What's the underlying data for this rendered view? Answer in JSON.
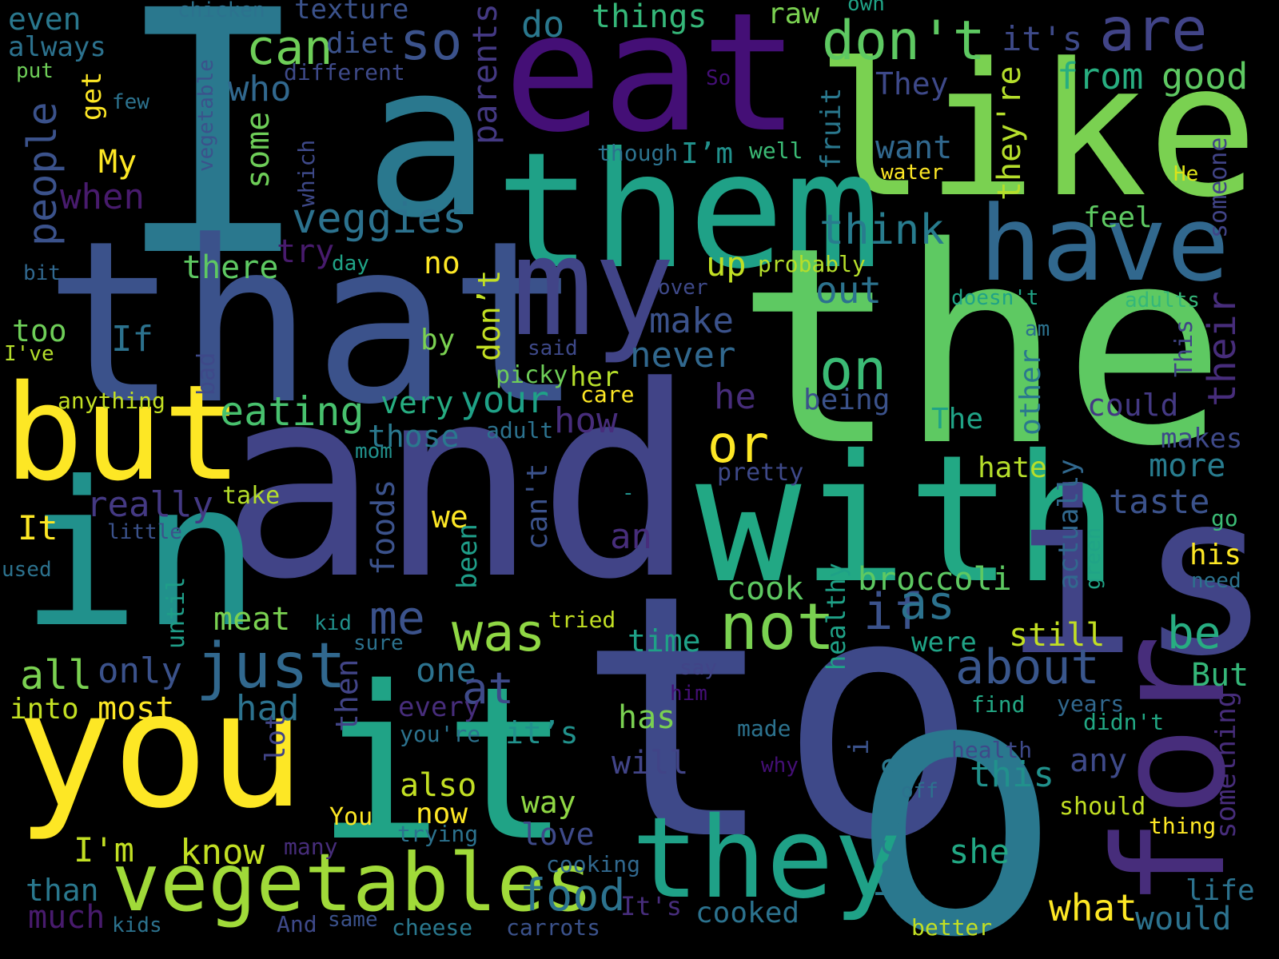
{
  "words": [
    {
      "text": "I",
      "color": "#2a788e"
    },
    {
      "text": "a",
      "color": "#2a788e"
    },
    {
      "text": "eat",
      "color": "#440f76"
    },
    {
      "text": "like",
      "color": "#7ad151"
    },
    {
      "text": "them",
      "color": "#1fa187"
    },
    {
      "text": "that",
      "color": "#3b528b"
    },
    {
      "text": "the",
      "color": "#5ec962"
    },
    {
      "text": "and",
      "color": "#414487"
    },
    {
      "text": "with",
      "color": "#22a884"
    },
    {
      "text": "is",
      "color": "#414487"
    },
    {
      "text": "in",
      "color": "#21918c"
    },
    {
      "text": "but",
      "color": "#fde725"
    },
    {
      "text": "my",
      "color": "#414487"
    },
    {
      "text": "have",
      "color": "#31688e"
    },
    {
      "text": "to",
      "color": "#3e4989"
    },
    {
      "text": "you",
      "color": "#fde725"
    },
    {
      "text": "it",
      "color": "#20a386"
    },
    {
      "text": "for",
      "color": "#472d7b"
    },
    {
      "text": "o",
      "color": "#2a788e"
    },
    {
      "text": "they",
      "color": "#1fa187"
    },
    {
      "text": "vegetables",
      "color": "#a0da39"
    },
    {
      "text": "veggies",
      "color": "#2c728e"
    },
    {
      "text": "don't",
      "color": "#5ec962"
    },
    {
      "text": "are",
      "color": "#414487"
    },
    {
      "text": "so",
      "color": "#3b528b"
    },
    {
      "text": "can",
      "color": "#6ece58"
    },
    {
      "text": "not",
      "color": "#7ad151"
    },
    {
      "text": "just",
      "color": "#31688e"
    },
    {
      "text": "was",
      "color": "#8fd744"
    },
    {
      "text": "on",
      "color": "#3bbb75"
    },
    {
      "text": "eating",
      "color": "#48c16e"
    },
    {
      "text": "really",
      "color": "#443983"
    },
    {
      "text": "or",
      "color": "#fde725"
    },
    {
      "text": "if",
      "color": "#3b528b"
    },
    {
      "text": "as",
      "color": "#2c728e"
    },
    {
      "text": "be",
      "color": "#27ad81"
    },
    {
      "text": "about",
      "color": "#39568c"
    },
    {
      "text": "me",
      "color": "#3b528b"
    },
    {
      "text": "food",
      "color": "#2c728e"
    },
    {
      "text": "think",
      "color": "#287c8e"
    },
    {
      "text": "from",
      "color": "#28ae80"
    },
    {
      "text": "good",
      "color": "#5ec962"
    },
    {
      "text": "it's",
      "color": "#3e4a89"
    },
    {
      "text": "do",
      "color": "#2a788e"
    },
    {
      "text": "things",
      "color": "#35b779"
    },
    {
      "text": "raw",
      "color": "#7ad151"
    },
    {
      "text": "own",
      "color": "#20a386"
    },
    {
      "text": "texture",
      "color": "#3b528b"
    },
    {
      "text": "chicken",
      "color": "#2c728e"
    },
    {
      "text": "even",
      "color": "#2a788e"
    },
    {
      "text": "always",
      "color": "#2c728e"
    },
    {
      "text": "put",
      "color": "#6ece58"
    },
    {
      "text": "diet",
      "color": "#3b528b"
    },
    {
      "text": "different",
      "color": "#3e4a89"
    },
    {
      "text": "parents",
      "color": "#443983"
    },
    {
      "text": "who",
      "color": "#31688e"
    },
    {
      "text": "some",
      "color": "#6ece58"
    },
    {
      "text": "So",
      "color": "#440f76"
    },
    {
      "text": "They",
      "color": "#3e4989"
    },
    {
      "text": "they're",
      "color": "#b5de2b"
    },
    {
      "text": "few",
      "color": "#2c728e"
    },
    {
      "text": "get",
      "color": "#fde725"
    },
    {
      "text": "My",
      "color": "#fde725"
    },
    {
      "text": "vegetable",
      "color": "#3b528b"
    },
    {
      "text": "people",
      "color": "#3b528b"
    },
    {
      "text": "when",
      "color": "#481b6d"
    },
    {
      "text": "which",
      "color": "#3e4989"
    },
    {
      "text": "though",
      "color": "#2c728e"
    },
    {
      "text": "I’m",
      "color": "#21918c"
    },
    {
      "text": "well",
      "color": "#3bbb75"
    },
    {
      "text": "fruit",
      "color": "#2a788e"
    },
    {
      "text": "want",
      "color": "#31688e"
    },
    {
      "text": "water",
      "color": "#fde725"
    },
    {
      "text": "He",
      "color": "#dde318"
    },
    {
      "text": "someone",
      "color": "#414487"
    },
    {
      "text": "feel",
      "color": "#5ec962"
    },
    {
      "text": "there",
      "color": "#5ec962"
    },
    {
      "text": "try",
      "color": "#481b6d"
    },
    {
      "text": "day",
      "color": "#20a386"
    },
    {
      "text": "bit",
      "color": "#31688e"
    },
    {
      "text": "no",
      "color": "#fde725"
    },
    {
      "text": "up",
      "color": "#c2df23"
    },
    {
      "text": "probably",
      "color": "#b5de2b"
    },
    {
      "text": "over",
      "color": "#3e4989"
    },
    {
      "text": "out",
      "color": "#2c728e"
    },
    {
      "text": "doesn't",
      "color": "#20a386"
    },
    {
      "text": "adults",
      "color": "#35b779"
    },
    {
      "text": "too",
      "color": "#6ece58"
    },
    {
      "text": "If",
      "color": "#2c728e"
    },
    {
      "text": "by",
      "color": "#7ad151"
    },
    {
      "text": "I've",
      "color": "#b5de2b"
    },
    {
      "text": "don’t",
      "color": "#c2df23"
    },
    {
      "text": "make",
      "color": "#3b528b"
    },
    {
      "text": "never",
      "color": "#31688e"
    },
    {
      "text": "am",
      "color": "#2c728e"
    },
    {
      "text": "This",
      "color": "#414487"
    },
    {
      "text": "their",
      "color": "#472d7b"
    },
    {
      "text": "said",
      "color": "#3e4989"
    },
    {
      "text": "picky",
      "color": "#6ece58"
    },
    {
      "text": "her",
      "color": "#b5de2b"
    },
    {
      "text": "bad",
      "color": "#3e4989"
    },
    {
      "text": "anything",
      "color": "#c2df23"
    },
    {
      "text": "care",
      "color": "#fde725"
    },
    {
      "text": "he",
      "color": "#472d7b"
    },
    {
      "text": "being",
      "color": "#3b528b"
    },
    {
      "text": "could",
      "color": "#443983"
    },
    {
      "text": "very",
      "color": "#27ad81"
    },
    {
      "text": "your",
      "color": "#1fa187"
    },
    {
      "text": "The",
      "color": "#20a386"
    },
    {
      "text": "other",
      "color": "#2a788e"
    },
    {
      "text": "makes",
      "color": "#3e4989"
    },
    {
      "text": "those",
      "color": "#2a788e"
    },
    {
      "text": "adult",
      "color": "#2c728e"
    },
    {
      "text": "how",
      "color": "#472d7b"
    },
    {
      "text": "mom",
      "color": "#21918c"
    },
    {
      "text": "pretty",
      "color": "#3e4989"
    },
    {
      "text": "hate",
      "color": "#b5de2b"
    },
    {
      "text": "more",
      "color": "#287c8e"
    },
    {
      "text": "take",
      "color": "#b5de2b"
    },
    {
      "text": "-",
      "color": "#21918c"
    },
    {
      "text": "taste",
      "color": "#3b528b"
    },
    {
      "text": "go",
      "color": "#3bbb75"
    },
    {
      "text": "It",
      "color": "#fde725"
    },
    {
      "text": "little",
      "color": "#3b528b"
    },
    {
      "text": "we",
      "color": "#fde725"
    },
    {
      "text": "can't",
      "color": "#3b528b"
    },
    {
      "text": "an",
      "color": "#472d7b"
    },
    {
      "text": "foods",
      "color": "#3b528b"
    },
    {
      "text": "his",
      "color": "#fde725"
    },
    {
      "text": "actually",
      "color": "#31688e"
    },
    {
      "text": "green",
      "color": "#20a386"
    },
    {
      "text": "need",
      "color": "#2c728e"
    },
    {
      "text": "used",
      "color": "#2c728e"
    },
    {
      "text": "been",
      "color": "#1f9e89"
    },
    {
      "text": "until",
      "color": "#1f9e89"
    },
    {
      "text": "cook",
      "color": "#5ec962"
    },
    {
      "text": "healthy",
      "color": "#1fa187"
    },
    {
      "text": "broccoli",
      "color": "#5ec962"
    },
    {
      "text": "meat",
      "color": "#7ad151"
    },
    {
      "text": "kid",
      "color": "#21918c"
    },
    {
      "text": "tried",
      "color": "#c2df23"
    },
    {
      "text": "time",
      "color": "#1fa187"
    },
    {
      "text": "were",
      "color": "#20a386"
    },
    {
      "text": "still",
      "color": "#c2df23"
    },
    {
      "text": "sure",
      "color": "#2c728e"
    },
    {
      "text": "all",
      "color": "#7ad151"
    },
    {
      "text": "only",
      "color": "#3b528b"
    },
    {
      "text": "one",
      "color": "#2c728e"
    },
    {
      "text": "at",
      "color": "#3e4a89"
    },
    {
      "text": "say",
      "color": "#414487"
    },
    {
      "text": "him",
      "color": "#440f76"
    },
    {
      "text": "But",
      "color": "#35b779"
    },
    {
      "text": "into",
      "color": "#c2df23"
    },
    {
      "text": "most",
      "color": "#fde725"
    },
    {
      "text": "had",
      "color": "#2c728e"
    },
    {
      "text": "then",
      "color": "#414487"
    },
    {
      "text": "every",
      "color": "#472d7b"
    },
    {
      "text": "has",
      "color": "#7ad151"
    },
    {
      "text": "find",
      "color": "#22a884"
    },
    {
      "text": "years",
      "color": "#31688e"
    },
    {
      "text": "something",
      "color": "#472d7b"
    },
    {
      "text": "didn't",
      "color": "#22a884"
    },
    {
      "text": "you're",
      "color": "#2c728e"
    },
    {
      "text": "it’s",
      "color": "#21918c"
    },
    {
      "text": "made",
      "color": "#2c728e"
    },
    {
      "text": "lot",
      "color": "#414487"
    },
    {
      "text": "will",
      "color": "#414487"
    },
    {
      "text": "why",
      "color": "#440f76"
    },
    {
      "text": "i",
      "color": "#3b528b"
    },
    {
      "text": "health",
      "color": "#3e4989"
    },
    {
      "text": "because",
      "color": "#2a788e"
    },
    {
      "text": "this",
      "color": "#21918c"
    },
    {
      "text": "any",
      "color": "#3e4a89"
    },
    {
      "text": "off",
      "color": "#2c728e"
    },
    {
      "text": "also",
      "color": "#c2df23"
    },
    {
      "text": "way",
      "color": "#8fd744"
    },
    {
      "text": "now",
      "color": "#fde725"
    },
    {
      "text": "should",
      "color": "#c2df23"
    },
    {
      "text": "You",
      "color": "#fde725"
    },
    {
      "text": "trying",
      "color": "#2c728e"
    },
    {
      "text": "love",
      "color": "#3e4a89"
    },
    {
      "text": "thing",
      "color": "#fde725"
    },
    {
      "text": "many",
      "color": "#472d7b"
    },
    {
      "text": "I'm",
      "color": "#c2df23"
    },
    {
      "text": "know",
      "color": "#c2df23"
    },
    {
      "text": "she",
      "color": "#22a884"
    },
    {
      "text": "cooking",
      "color": "#31688e"
    },
    {
      "text": "than",
      "color": "#2a788e"
    },
    {
      "text": "life",
      "color": "#2c728e"
    },
    {
      "text": "It's",
      "color": "#472d7b"
    },
    {
      "text": "what",
      "color": "#fde725"
    },
    {
      "text": "much",
      "color": "#481b6d"
    },
    {
      "text": "kids",
      "color": "#2c728e"
    },
    {
      "text": "And",
      "color": "#3e4989"
    },
    {
      "text": "same",
      "color": "#3b528b"
    },
    {
      "text": "cheese",
      "color": "#2a788e"
    },
    {
      "text": "carrots",
      "color": "#3b528b"
    },
    {
      "text": "cooked",
      "color": "#2c728e"
    },
    {
      "text": "better",
      "color": "#c2df23"
    },
    {
      "text": "would",
      "color": "#2c728e"
    }
  ]
}
